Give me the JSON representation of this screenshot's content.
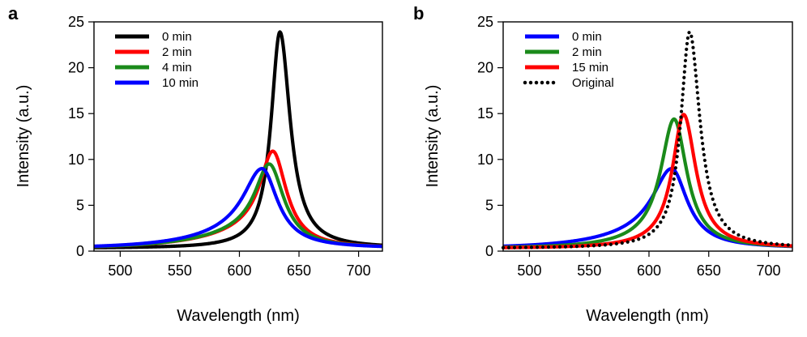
{
  "figure": {
    "panel_labels": [
      "a",
      "b"
    ]
  },
  "chart_data": [
    {
      "type": "line",
      "panel": "a",
      "title": "",
      "xlabel": "Wavelength (nm)",
      "ylabel": "Intensity (a.u.)",
      "xlim": [
        478,
        720
      ],
      "ylim": [
        0,
        25
      ],
      "xticks": [
        500,
        550,
        600,
        650,
        700
      ],
      "yticks": [
        0,
        5,
        10,
        15,
        20,
        25
      ],
      "legend_position": "top-left",
      "series": [
        {
          "name": "0 min",
          "color": "#000000",
          "style": "solid",
          "peak": 634,
          "amplitude": 23.9,
          "width_left": 9,
          "width_right": 10.5,
          "tail_amp": 0,
          "tail_width": 0,
          "baseline": 0.3
        },
        {
          "name": "2 min",
          "color": "#ff0000",
          "style": "solid",
          "peak": 628,
          "amplitude": 10.9,
          "width_left": 12,
          "width_right": 14,
          "tail_amp": 0.33,
          "tail_width": 45,
          "baseline": 0.3
        },
        {
          "name": "4 min",
          "color": "#1a8a1a",
          "style": "solid",
          "peak": 625,
          "amplitude": 9.5,
          "width_left": 13,
          "width_right": 15,
          "tail_amp": 0.36,
          "tail_width": 45,
          "baseline": 0.3
        },
        {
          "name": "10 min",
          "color": "#0000ff",
          "style": "solid",
          "peak": 619,
          "amplitude": 9.0,
          "width_left": 17,
          "width_right": 16,
          "tail_amp": 0.38,
          "tail_width": 42,
          "baseline": 0.3
        }
      ]
    },
    {
      "type": "line",
      "panel": "b",
      "title": "",
      "xlabel": "Wavelength (nm)",
      "ylabel": "Intensity (a.u.)",
      "xlim": [
        478,
        720
      ],
      "ylim": [
        0,
        25
      ],
      "xticks": [
        500,
        550,
        600,
        650,
        700
      ],
      "yticks": [
        0,
        5,
        10,
        15,
        20,
        25
      ],
      "legend_position": "top-left",
      "series": [
        {
          "name": "0 min",
          "color": "#0000ff",
          "style": "solid",
          "peak": 619,
          "amplitude": 9.0,
          "width_left": 17,
          "width_right": 16,
          "tail_amp": 0.38,
          "tail_width": 42,
          "baseline": 0.3
        },
        {
          "name": "2 min",
          "color": "#1a8a1a",
          "style": "solid",
          "peak": 621,
          "amplitude": 14.4,
          "width_left": 13,
          "width_right": 13,
          "tail_amp": 0.12,
          "tail_width": 30,
          "baseline": 0.3
        },
        {
          "name": "15 min",
          "color": "#ff0000",
          "style": "solid",
          "peak": 629,
          "amplitude": 14.9,
          "width_left": 11,
          "width_right": 12.5,
          "tail_amp": 0.08,
          "tail_width": 25,
          "baseline": 0.3
        },
        {
          "name": "Original",
          "color": "#000000",
          "style": "dotted",
          "peak": 634,
          "amplitude": 23.9,
          "width_left": 9,
          "width_right": 10.5,
          "tail_amp": 0,
          "tail_width": 0,
          "baseline": 0.3
        }
      ]
    }
  ]
}
